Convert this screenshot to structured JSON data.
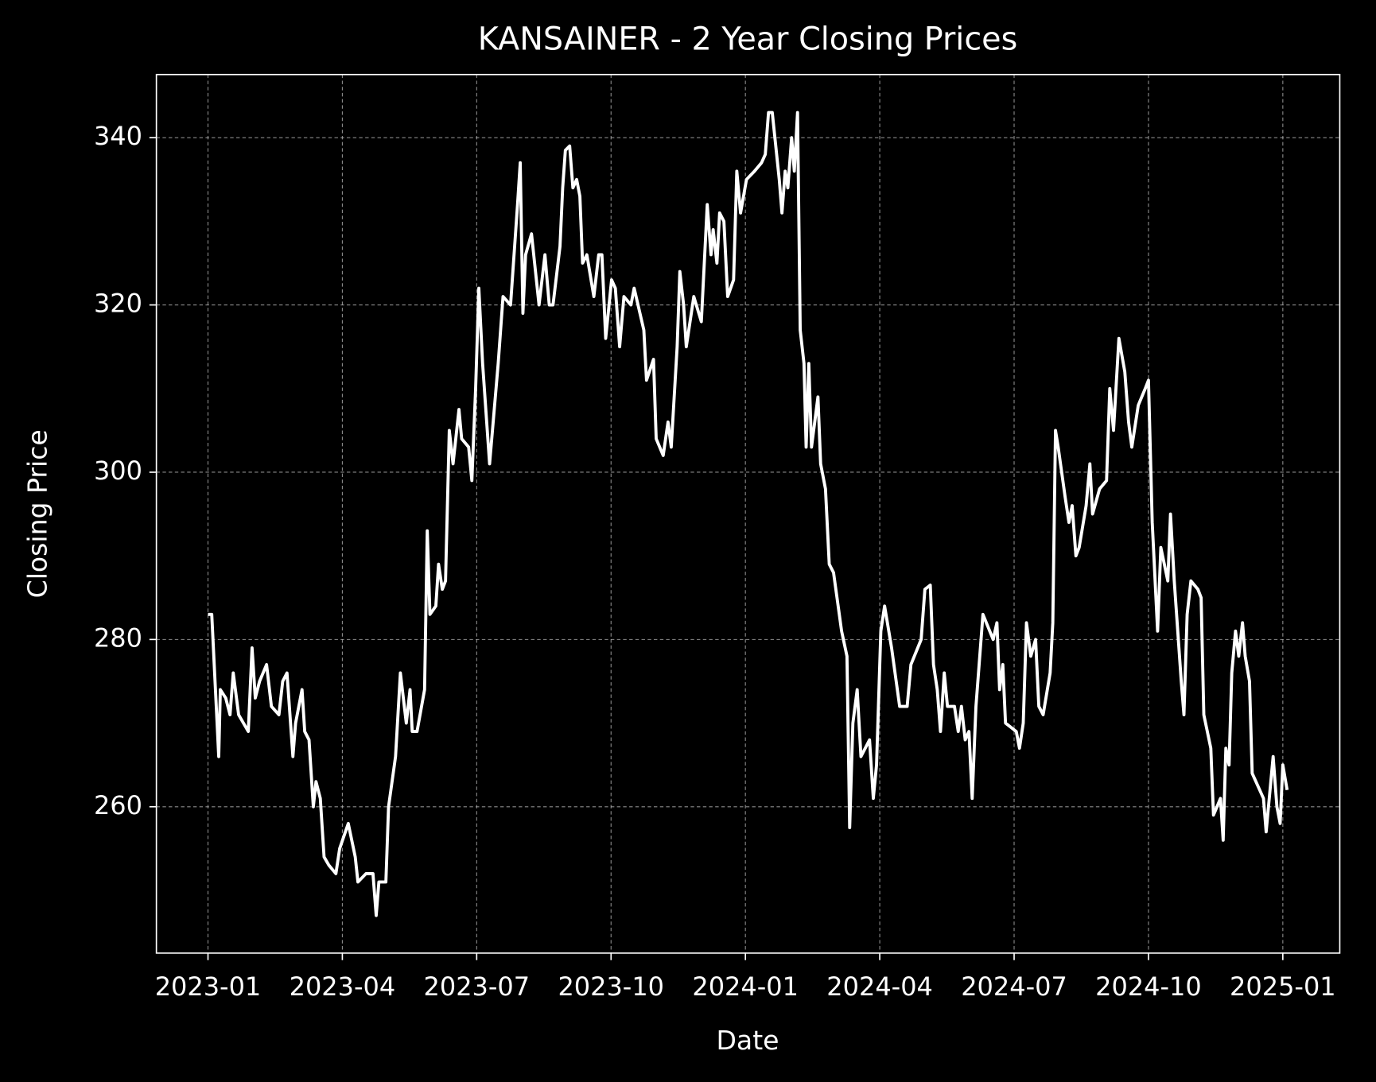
{
  "chart_data": {
    "type": "line",
    "title": "KANSAINER - 2 Year Closing Prices",
    "x_label": "Date",
    "y_label": "Closing Price",
    "color": "#ffffff",
    "grid": true,
    "xlim": [
      2022.904,
      2025.106
    ],
    "ylim": [
      242.5,
      347.55
    ],
    "xticks": [
      {
        "value": 2023.0,
        "label": "2023-01"
      },
      {
        "value": 2023.25,
        "label": "2023-04"
      },
      {
        "value": 2023.5,
        "label": "2023-07"
      },
      {
        "value": 2023.75,
        "label": "2023-10"
      },
      {
        "value": 2024.0,
        "label": "2024-01"
      },
      {
        "value": 2024.25,
        "label": "2024-04"
      },
      {
        "value": 2024.5,
        "label": "2024-07"
      },
      {
        "value": 2024.75,
        "label": "2024-10"
      },
      {
        "value": 2025.0,
        "label": "2025-01"
      }
    ],
    "yticks": [
      260,
      280,
      300,
      320,
      340
    ],
    "x": [
      2023.0,
      2023.007,
      2023.02,
      2023.023,
      2023.033,
      2023.041,
      2023.047,
      2023.057,
      2023.075,
      2023.082,
      2023.088,
      2023.096,
      2023.109,
      2023.118,
      2023.132,
      2023.139,
      2023.147,
      2023.158,
      2023.163,
      2023.175,
      2023.18,
      2023.188,
      2023.196,
      2023.201,
      2023.209,
      2023.216,
      2023.225,
      2023.238,
      2023.245,
      2023.261,
      2023.274,
      2023.279,
      2023.294,
      2023.307,
      2023.313,
      2023.318,
      2023.331,
      2023.336,
      2023.349,
      2023.358,
      2023.369,
      2023.376,
      2023.38,
      2023.389,
      2023.403,
      2023.408,
      2023.413,
      2023.424,
      2023.429,
      2023.436,
      2023.442,
      2023.449,
      2023.456,
      2023.467,
      2023.472,
      2023.485,
      2023.491,
      2023.498,
      2023.504,
      2023.511,
      2023.524,
      2023.532,
      2023.54,
      2023.549,
      2023.563,
      2023.576,
      2023.581,
      2023.586,
      2023.591,
      2023.602,
      2023.616,
      2023.627,
      2023.635,
      2023.642,
      2023.655,
      2023.66,
      2023.665,
      2023.673,
      2023.679,
      2023.686,
      2023.692,
      2023.697,
      2023.705,
      2023.718,
      2023.727,
      2023.733,
      2023.74,
      2023.751,
      2023.758,
      2023.766,
      2023.774,
      2023.787,
      2023.793,
      2023.811,
      2023.816,
      2023.829,
      2023.834,
      2023.847,
      2023.856,
      2023.862,
      2023.873,
      2023.878,
      2023.885,
      2023.89,
      2023.904,
      2023.918,
      2023.929,
      2023.936,
      2023.94,
      2023.947,
      2023.952,
      2023.96,
      2023.967,
      2023.978,
      2023.984,
      2023.991,
      2024.002,
      2024.017,
      2024.03,
      2024.037,
      2024.043,
      2024.05,
      2024.063,
      2024.068,
      2024.074,
      2024.079,
      2024.086,
      2024.091,
      2024.097,
      2024.102,
      2024.109,
      2024.113,
      2024.118,
      2024.123,
      2024.135,
      2024.14,
      2024.149,
      2024.156,
      2024.164,
      2024.179,
      2024.189,
      2024.194,
      2024.2,
      2024.208,
      2024.215,
      2024.231,
      2024.238,
      2024.244,
      2024.252,
      2024.259,
      2024.272,
      2024.287,
      2024.301,
      2024.308,
      2024.327,
      2024.334,
      2024.344,
      2024.35,
      2024.357,
      2024.363,
      2024.37,
      2024.376,
      2024.389,
      2024.396,
      2024.402,
      2024.409,
      2024.416,
      2024.422,
      2024.429,
      2024.442,
      2024.461,
      2024.468,
      2024.473,
      2024.479,
      2024.484,
      2024.504,
      2024.51,
      2024.517,
      2024.523,
      2024.531,
      2024.54,
      2024.546,
      2024.554,
      2024.567,
      2024.572,
      2024.577,
      2024.582,
      2024.595,
      2024.602,
      2024.608,
      2024.615,
      2024.621,
      2024.634,
      2024.641,
      2024.646,
      2024.659,
      2024.672,
      2024.678,
      2024.685,
      2024.695,
      2024.706,
      2024.713,
      2024.719,
      2024.731,
      2024.744,
      2024.75,
      2024.757,
      2024.767,
      2024.773,
      2024.786,
      2024.791,
      2024.798,
      2024.811,
      2024.816,
      2024.822,
      2024.829,
      2024.842,
      2024.848,
      2024.853,
      2024.866,
      2024.871,
      2024.884,
      2024.889,
      2024.894,
      2024.9,
      2024.905,
      2024.912,
      2024.918,
      2024.925,
      2024.93,
      2024.938,
      2024.943,
      2024.964,
      2024.969,
      2024.982,
      2024.989,
      2024.995,
      2025.0,
      2025.008
    ],
    "values": [
      283,
      283,
      266,
      274,
      273,
      271,
      276,
      271,
      269,
      279,
      273,
      275,
      277,
      272,
      271,
      275,
      276,
      266,
      270,
      274,
      269,
      268,
      260,
      263,
      261,
      254,
      253,
      252,
      255,
      258,
      254,
      251,
      252,
      252,
      247,
      251,
      251,
      260,
      266,
      276,
      270,
      274,
      269,
      269,
      274,
      293,
      283,
      284,
      289,
      286,
      287,
      305,
      301,
      307.5,
      304,
      303,
      299,
      310,
      322,
      313,
      301,
      307,
      313,
      321,
      320,
      332,
      337,
      319,
      326,
      328.5,
      320,
      326,
      320,
      320,
      327,
      334,
      338.5,
      339,
      334,
      335,
      333,
      325,
      326,
      321,
      326,
      326,
      316,
      323,
      322,
      315,
      321,
      320,
      322,
      317,
      311,
      313.5,
      304,
      302,
      306,
      303,
      315,
      324,
      320,
      315,
      321,
      318,
      332,
      326,
      329,
      325,
      331,
      330,
      321,
      323,
      336,
      331,
      335,
      336,
      337,
      338,
      343,
      343,
      335,
      331,
      336,
      334,
      340,
      336,
      343,
      317,
      313,
      303,
      313,
      303,
      309,
      301,
      298,
      289,
      288,
      281,
      278,
      257.5,
      270,
      274,
      266,
      268,
      261,
      265,
      281,
      284,
      279,
      272,
      272,
      277,
      280,
      286,
      286.5,
      277,
      274,
      269,
      276,
      272,
      272,
      269,
      272,
      268,
      269,
      261,
      272,
      283,
      280,
      282,
      274,
      277,
      270,
      269,
      267,
      270,
      282,
      278,
      280,
      272,
      271,
      276,
      282,
      305,
      303,
      297,
      294,
      296,
      290,
      291,
      296,
      301,
      295,
      298,
      299,
      310,
      305,
      316,
      312,
      306,
      303,
      308,
      310,
      311,
      294,
      281,
      291,
      287,
      295,
      287,
      275,
      271,
      283,
      287,
      286,
      285,
      271,
      267,
      259,
      261,
      256,
      267,
      265,
      276,
      281,
      278,
      282,
      278,
      275,
      264,
      261,
      257,
      266,
      260,
      258,
      265,
      262
    ]
  }
}
